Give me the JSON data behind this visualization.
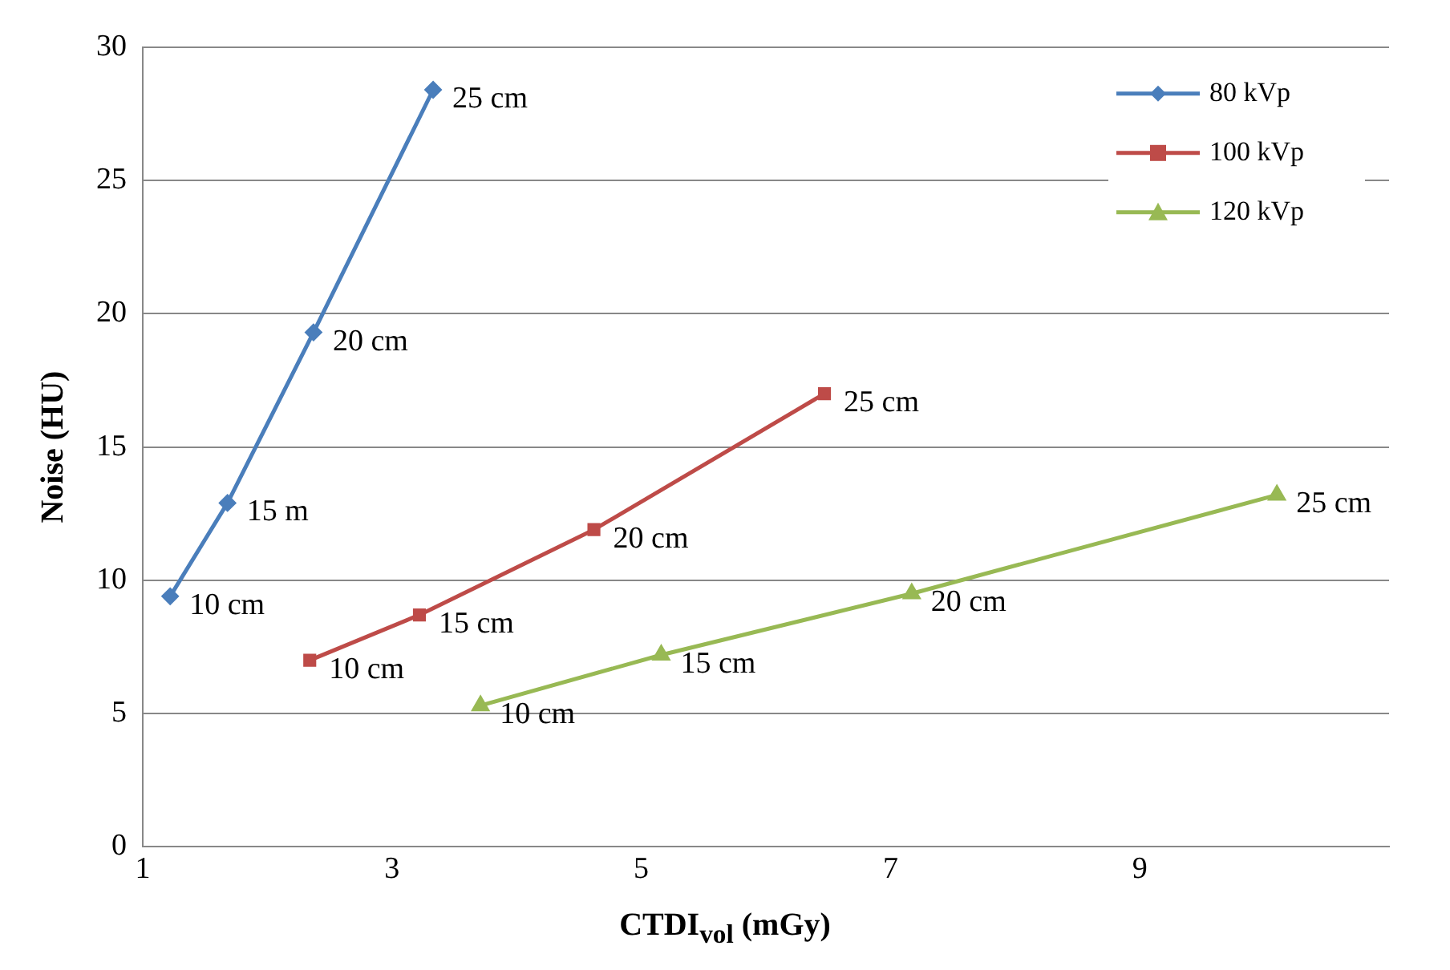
{
  "chart_data": {
    "type": "line",
    "xlabel": "CTDI$_{vol}$ (mGy)",
    "ylabel": "Noise (HU)",
    "xlim": [
      1,
      11
    ],
    "xticks": [
      1,
      3,
      5,
      7,
      9
    ],
    "ylim": [
      0,
      30
    ],
    "yticks": [
      0,
      5,
      10,
      15,
      20,
      25,
      30
    ],
    "grid": "y",
    "legend": "top right",
    "series": [
      {
        "name": "80 kVp",
        "color": "#4a7ebb",
        "marker": "diamond",
        "x": [
          1.22,
          1.68,
          2.37,
          3.33
        ],
        "values": [
          9.4,
          12.9,
          19.3,
          28.4
        ]
      },
      {
        "name": "100 kVp",
        "color": "#be4b48",
        "marker": "square",
        "x": [
          2.34,
          3.22,
          4.62,
          6.47
        ],
        "values": [
          7.0,
          8.7,
          11.9,
          17.0
        ]
      },
      {
        "name": "120 kVp",
        "color": "#98b954",
        "marker": "triangle",
        "x": [
          3.71,
          5.16,
          7.17,
          10.1
        ],
        "values": [
          5.3,
          7.2,
          9.5,
          13.2
        ]
      }
    ],
    "annotations": [
      {
        "text": "10 cm",
        "x": 1.22,
        "y": 9.4
      },
      {
        "text": "15 m",
        "x": 1.68,
        "y": 12.9
      },
      {
        "text": "20 cm",
        "x": 2.37,
        "y": 19.3
      },
      {
        "text": "25 cm",
        "x": 3.33,
        "y": 28.4
      },
      {
        "text": "10 cm",
        "x": 2.34,
        "y": 7.0
      },
      {
        "text": "15 cm",
        "x": 3.22,
        "y": 8.7
      },
      {
        "text": "20 cm",
        "x": 4.62,
        "y": 11.9
      },
      {
        "text": "25 cm",
        "x": 6.47,
        "y": 17.0
      },
      {
        "text": "10 cm",
        "x": 3.71,
        "y": 5.3
      },
      {
        "text": "15 cm",
        "x": 5.16,
        "y": 7.2
      },
      {
        "text": "20 cm",
        "x": 7.17,
        "y": 9.5
      },
      {
        "text": "25 cm",
        "x": 10.1,
        "y": 13.2
      }
    ]
  }
}
